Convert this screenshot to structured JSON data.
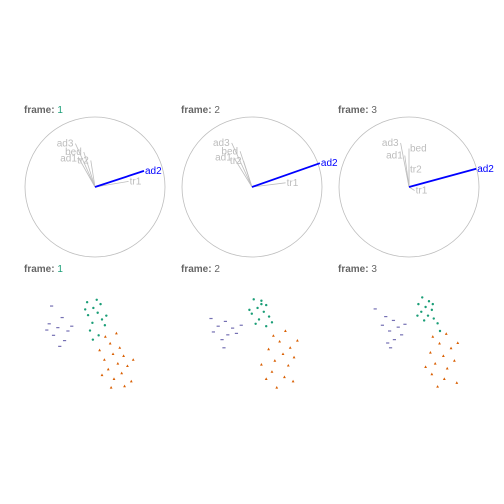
{
  "chart_data": {
    "type": "tour-animation-frames",
    "frame_title_prefix": "frame: ",
    "colors": {
      "circle": "#bdbdbd",
      "axis_muted": "#bdbdbd",
      "axis_highlight": "#0000ff",
      "frame_number": "#1b9e77",
      "title": "#666666",
      "group_1": "#7570b3",
      "group_2": "#1b9e77",
      "group_3": "#d95f02"
    },
    "highlight_variable": "ad2",
    "axes_frames": [
      {
        "frame": "1",
        "axes": [
          {
            "name": "ad3",
            "x": -0.28,
            "y": 0.62
          },
          {
            "name": "bed",
            "x": -0.16,
            "y": 0.5
          },
          {
            "name": "ad1",
            "x": -0.23,
            "y": 0.41
          },
          {
            "name": "tr2",
            "x": -0.06,
            "y": 0.38
          },
          {
            "name": "tr1",
            "x": 0.48,
            "y": 0.08
          },
          {
            "name": "ad2",
            "x": 0.7,
            "y": 0.23
          }
        ]
      },
      {
        "frame": "2",
        "axes": [
          {
            "name": "ad3",
            "x": -0.29,
            "y": 0.63
          },
          {
            "name": "bed",
            "x": -0.17,
            "y": 0.51
          },
          {
            "name": "ad1",
            "x": -0.26,
            "y": 0.42
          },
          {
            "name": "tr2",
            "x": -0.12,
            "y": 0.37
          },
          {
            "name": "tr1",
            "x": 0.48,
            "y": 0.06
          },
          {
            "name": "ad2",
            "x": 0.97,
            "y": 0.34
          }
        ]
      },
      {
        "frame": "3",
        "axes": [
          {
            "name": "ad3",
            "x": -0.12,
            "y": 0.63
          },
          {
            "name": "bed",
            "x": 0.0,
            "y": 0.55
          },
          {
            "name": "ad1",
            "x": -0.06,
            "y": 0.45
          },
          {
            "name": "tr2",
            "x": 0.0,
            "y": 0.25
          },
          {
            "name": "tr1",
            "x": 0.08,
            "y": -0.05
          },
          {
            "name": "ad2",
            "x": 0.96,
            "y": 0.26
          }
        ]
      }
    ],
    "scatter_frames": [
      {
        "frame": "1",
        "points": [
          {
            "x": 0.94,
            "y": 0.9,
            "g": 2
          },
          {
            "x": 1.14,
            "y": 0.95,
            "g": 2
          },
          {
            "x": 1.22,
            "y": 0.86,
            "g": 2
          },
          {
            "x": 1.07,
            "y": 0.78,
            "g": 2
          },
          {
            "x": 1.16,
            "y": 0.68,
            "g": 2
          },
          {
            "x": 0.96,
            "y": 0.63,
            "g": 2
          },
          {
            "x": 1.25,
            "y": 0.54,
            "g": 2
          },
          {
            "x": 1.05,
            "y": 0.47,
            "g": 2
          },
          {
            "x": 1.31,
            "y": 0.42,
            "g": 2
          },
          {
            "x": 1.0,
            "y": 0.31,
            "g": 2
          },
          {
            "x": 1.18,
            "y": 0.21,
            "g": 2
          },
          {
            "x": 1.06,
            "y": 0.12,
            "g": 2
          },
          {
            "x": 1.34,
            "y": 0.62,
            "g": 2
          },
          {
            "x": 0.9,
            "y": 0.75,
            "g": 2
          },
          {
            "x": 0.2,
            "y": 0.82,
            "g": 1
          },
          {
            "x": 0.42,
            "y": 0.58,
            "g": 1
          },
          {
            "x": 0.15,
            "y": 0.45,
            "g": 1
          },
          {
            "x": 0.33,
            "y": 0.37,
            "g": 1
          },
          {
            "x": 0.54,
            "y": 0.3,
            "g": 1
          },
          {
            "x": 0.24,
            "y": 0.21,
            "g": 1
          },
          {
            "x": 0.47,
            "y": 0.1,
            "g": 1
          },
          {
            "x": 0.37,
            "y": -0.02,
            "g": 1
          },
          {
            "x": 0.62,
            "y": 0.4,
            "g": 1
          },
          {
            "x": 0.1,
            "y": 0.32,
            "g": 1
          },
          {
            "x": 1.32,
            "y": 0.18,
            "g": 3
          },
          {
            "x": 1.55,
            "y": 0.25,
            "g": 3
          },
          {
            "x": 1.42,
            "y": 0.04,
            "g": 3
          },
          {
            "x": 1.62,
            "y": -0.05,
            "g": 3
          },
          {
            "x": 1.2,
            "y": -0.1,
            "g": 3
          },
          {
            "x": 1.48,
            "y": -0.18,
            "g": 3
          },
          {
            "x": 1.7,
            "y": -0.22,
            "g": 3
          },
          {
            "x": 1.3,
            "y": -0.3,
            "g": 3
          },
          {
            "x": 1.58,
            "y": -0.38,
            "g": 3
          },
          {
            "x": 1.78,
            "y": -0.43,
            "g": 3
          },
          {
            "x": 1.38,
            "y": -0.5,
            "g": 3
          },
          {
            "x": 1.66,
            "y": -0.58,
            "g": 3
          },
          {
            "x": 1.5,
            "y": -0.7,
            "g": 3
          },
          {
            "x": 1.86,
            "y": -0.75,
            "g": 3
          },
          {
            "x": 1.25,
            "y": -0.62,
            "g": 3
          },
          {
            "x": 1.72,
            "y": -0.85,
            "g": 3
          },
          {
            "x": 1.9,
            "y": -0.3,
            "g": 3
          },
          {
            "x": 1.44,
            "y": -0.88,
            "g": 3
          }
        ]
      },
      {
        "frame": "2",
        "points": [
          {
            "x": 1.14,
            "y": 0.96,
            "g": 2
          },
          {
            "x": 1.3,
            "y": 0.93,
            "g": 2
          },
          {
            "x": 1.4,
            "y": 0.84,
            "g": 2
          },
          {
            "x": 1.22,
            "y": 0.78,
            "g": 2
          },
          {
            "x": 1.35,
            "y": 0.7,
            "g": 2
          },
          {
            "x": 1.1,
            "y": 0.66,
            "g": 2
          },
          {
            "x": 1.46,
            "y": 0.6,
            "g": 2
          },
          {
            "x": 1.25,
            "y": 0.54,
            "g": 2
          },
          {
            "x": 1.52,
            "y": 0.48,
            "g": 2
          },
          {
            "x": 1.18,
            "y": 0.45,
            "g": 2
          },
          {
            "x": 1.4,
            "y": 0.4,
            "g": 2
          },
          {
            "x": 1.3,
            "y": 0.86,
            "g": 2
          },
          {
            "x": 1.05,
            "y": 0.74,
            "g": 2
          },
          {
            "x": 0.25,
            "y": 0.56,
            "g": 1
          },
          {
            "x": 0.55,
            "y": 0.5,
            "g": 1
          },
          {
            "x": 0.4,
            "y": 0.4,
            "g": 1
          },
          {
            "x": 0.7,
            "y": 0.36,
            "g": 1
          },
          {
            "x": 0.3,
            "y": 0.28,
            "g": 1
          },
          {
            "x": 0.6,
            "y": 0.22,
            "g": 1
          },
          {
            "x": 0.48,
            "y": 0.12,
            "g": 1
          },
          {
            "x": 0.78,
            "y": 0.25,
            "g": 1
          },
          {
            "x": 0.88,
            "y": 0.42,
            "g": 1
          },
          {
            "x": 0.52,
            "y": -0.05,
            "g": 1
          },
          {
            "x": 1.55,
            "y": 0.2,
            "g": 3
          },
          {
            "x": 1.8,
            "y": 0.3,
            "g": 3
          },
          {
            "x": 1.68,
            "y": 0.08,
            "g": 3
          },
          {
            "x": 1.9,
            "y": -0.05,
            "g": 3
          },
          {
            "x": 1.45,
            "y": -0.08,
            "g": 3
          },
          {
            "x": 1.75,
            "y": -0.18,
            "g": 3
          },
          {
            "x": 1.98,
            "y": -0.25,
            "g": 3
          },
          {
            "x": 1.58,
            "y": -0.32,
            "g": 3
          },
          {
            "x": 1.86,
            "y": -0.42,
            "g": 3
          },
          {
            "x": 1.52,
            "y": -0.55,
            "g": 3
          },
          {
            "x": 1.78,
            "y": -0.66,
            "g": 3
          },
          {
            "x": 1.4,
            "y": -0.7,
            "g": 3
          },
          {
            "x": 1.96,
            "y": -0.75,
            "g": 3
          },
          {
            "x": 1.62,
            "y": -0.88,
            "g": 3
          },
          {
            "x": 1.3,
            "y": -0.4,
            "g": 3
          },
          {
            "x": 2.05,
            "y": 0.1,
            "g": 3
          }
        ]
      },
      {
        "frame": "3",
        "points": [
          {
            "x": 1.38,
            "y": 1.0,
            "g": 2
          },
          {
            "x": 1.52,
            "y": 0.92,
            "g": 2
          },
          {
            "x": 1.3,
            "y": 0.86,
            "g": 2
          },
          {
            "x": 1.45,
            "y": 0.8,
            "g": 2
          },
          {
            "x": 1.58,
            "y": 0.74,
            "g": 2
          },
          {
            "x": 1.36,
            "y": 0.7,
            "g": 2
          },
          {
            "x": 1.5,
            "y": 0.62,
            "g": 2
          },
          {
            "x": 1.62,
            "y": 0.56,
            "g": 2
          },
          {
            "x": 1.42,
            "y": 0.52,
            "g": 2
          },
          {
            "x": 1.7,
            "y": 0.46,
            "g": 2
          },
          {
            "x": 1.28,
            "y": 0.62,
            "g": 2
          },
          {
            "x": 1.6,
            "y": 0.86,
            "g": 2
          },
          {
            "x": 1.75,
            "y": 0.3,
            "g": 2
          },
          {
            "x": 0.4,
            "y": 0.76,
            "g": 1
          },
          {
            "x": 0.62,
            "y": 0.6,
            "g": 1
          },
          {
            "x": 0.78,
            "y": 0.52,
            "g": 1
          },
          {
            "x": 0.55,
            "y": 0.42,
            "g": 1
          },
          {
            "x": 0.88,
            "y": 0.38,
            "g": 1
          },
          {
            "x": 0.7,
            "y": 0.3,
            "g": 1
          },
          {
            "x": 0.95,
            "y": 0.22,
            "g": 1
          },
          {
            "x": 0.8,
            "y": 0.12,
            "g": 1
          },
          {
            "x": 0.66,
            "y": 0.05,
            "g": 1
          },
          {
            "x": 1.02,
            "y": 0.44,
            "g": 1
          },
          {
            "x": 0.72,
            "y": -0.05,
            "g": 1
          },
          {
            "x": 1.6,
            "y": 0.18,
            "g": 3
          },
          {
            "x": 1.88,
            "y": 0.24,
            "g": 3
          },
          {
            "x": 1.74,
            "y": 0.04,
            "g": 3
          },
          {
            "x": 1.98,
            "y": -0.06,
            "g": 3
          },
          {
            "x": 1.55,
            "y": -0.15,
            "g": 3
          },
          {
            "x": 1.82,
            "y": -0.22,
            "g": 3
          },
          {
            "x": 2.05,
            "y": -0.32,
            "g": 3
          },
          {
            "x": 1.65,
            "y": -0.38,
            "g": 3
          },
          {
            "x": 1.9,
            "y": -0.48,
            "g": 3
          },
          {
            "x": 1.58,
            "y": -0.6,
            "g": 3
          },
          {
            "x": 1.84,
            "y": -0.7,
            "g": 3
          },
          {
            "x": 2.1,
            "y": -0.78,
            "g": 3
          },
          {
            "x": 1.7,
            "y": -0.86,
            "g": 3
          },
          {
            "x": 1.45,
            "y": -0.45,
            "g": 3
          },
          {
            "x": 2.12,
            "y": 0.05,
            "g": 3
          }
        ]
      }
    ]
  }
}
